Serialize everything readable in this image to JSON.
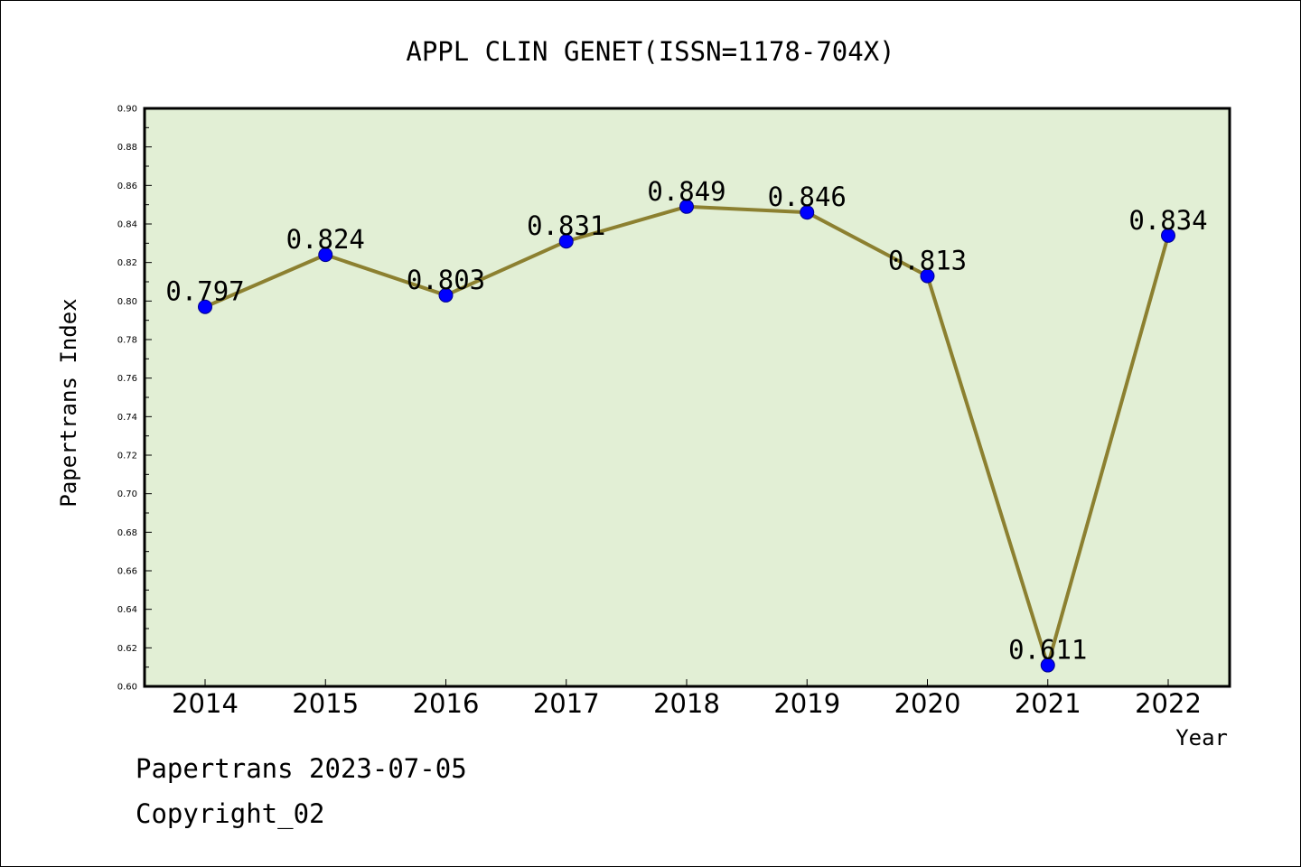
{
  "chart_data": {
    "type": "line",
    "title": "APPL CLIN GENET(ISSN=1178-704X)",
    "xlabel": "Year",
    "ylabel": "Papertrans Index",
    "categories": [
      "2014",
      "2015",
      "2016",
      "2017",
      "2018",
      "2019",
      "2020",
      "2021",
      "2022"
    ],
    "values": [
      0.797,
      0.824,
      0.803,
      0.831,
      0.849,
      0.846,
      0.813,
      0.611,
      0.834
    ],
    "data_labels": [
      "0.797",
      "0.824",
      "0.803",
      "0.831",
      "0.849",
      "0.846",
      "0.813",
      "0.611",
      "0.834"
    ],
    "ylim": [
      0.6,
      0.9
    ],
    "yticks": [
      "0.60",
      "0.62",
      "0.64",
      "0.66",
      "0.68",
      "0.70",
      "0.72",
      "0.74",
      "0.76",
      "0.78",
      "0.80",
      "0.82",
      "0.84",
      "0.86",
      "0.88",
      "0.90"
    ],
    "grid": false,
    "legend": "none",
    "colors": {
      "plot_background": "#e2efd5",
      "line": "#8c8030",
      "marker": "#0000ff"
    }
  },
  "footer": {
    "date_line": "Papertrans 2023-07-05",
    "copyright_line": "Copyright_02"
  }
}
